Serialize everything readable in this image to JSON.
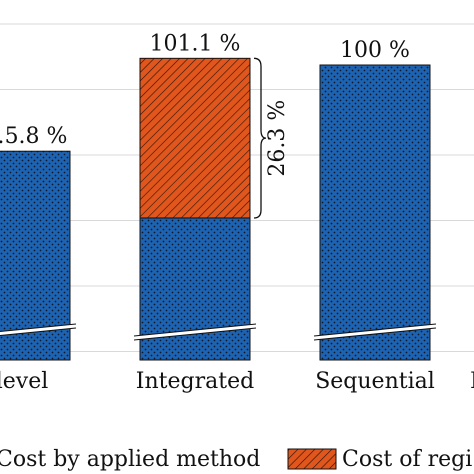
{
  "chart_data": {
    "type": "bar",
    "categories": [
      "…level",
      "Integrated",
      "Sequential",
      "I…"
    ],
    "series": [
      {
        "name": "Cost by applied method",
        "values": [
          85.8,
          74.8,
          100,
          null
        ]
      },
      {
        "name": "Cost of regi…",
        "values": [
          0,
          26.3,
          0,
          null
        ]
      }
    ],
    "bar_labels": [
      "…5.8 %",
      "101.1 %",
      "100 %",
      ""
    ],
    "bracket_annotation": "26.3 %",
    "ylim": [
      62,
      110
    ],
    "axis_break": true,
    "grid": true,
    "legend_position": "bottom",
    "colors": {
      "applied": "#1f63b0",
      "regularization": "#e0561c",
      "edge": "#111111",
      "grid": "#d9d9d9"
    },
    "title": "",
    "xlabel": "",
    "ylabel": ""
  }
}
